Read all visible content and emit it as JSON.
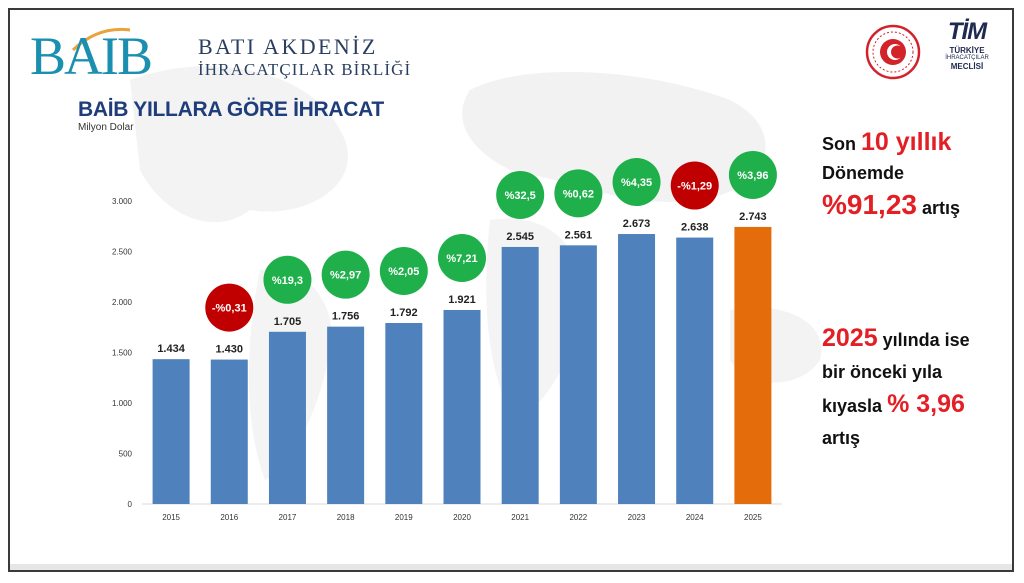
{
  "header": {
    "logo_mark": "BAIB",
    "logo_line1": "BATI AKDENİZ",
    "logo_line2": "İHRACATÇILAR BİRLİĞİ",
    "tim_mark": "TİM",
    "tim_line1": "TÜRKİYE",
    "tim_line2": "İHRACATÇILAR",
    "tim_line3": "MECLİSİ"
  },
  "title": "BAİB YILLARA GÖRE İHRACAT",
  "subtitle": "Milyon Dolar",
  "chart_data": {
    "type": "bar",
    "title": "BAİB YILLARA GÖRE İHRACAT",
    "ylabel": "Milyon Dolar",
    "ylim": [
      0,
      3000
    ],
    "yticks": [
      0,
      500,
      1000,
      1500,
      2000,
      2500,
      3000
    ],
    "ytick_labels": [
      "0",
      "500",
      "1.000",
      "1.500",
      "2.000",
      "2.500",
      "3.000"
    ],
    "categories": [
      "2015",
      "2016",
      "2017",
      "2018",
      "2019",
      "2020",
      "2021",
      "2022",
      "2023",
      "2024",
      "2025"
    ],
    "values": [
      1434,
      1430,
      1705,
      1756,
      1792,
      1921,
      2545,
      2561,
      2673,
      2638,
      2743
    ],
    "value_labels": [
      "1.434",
      "1.430",
      "1.705",
      "1.756",
      "1.792",
      "1.921",
      "2.545",
      "2.561",
      "2.673",
      "2.638",
      "2.743"
    ],
    "highlight_index": 10,
    "growth_labels": [
      null,
      "-%0,31",
      "%19,3",
      "%2,97",
      "%2,05",
      "%7,21",
      "%32,5",
      "%0,62",
      "%4,35",
      "-%1,29",
      "%3,96"
    ],
    "growth_values": [
      null,
      -0.31,
      19.3,
      2.97,
      2.05,
      7.21,
      32.5,
      0.62,
      4.35,
      -1.29,
      3.96
    ],
    "colors": {
      "bar": "#4f81bd",
      "highlight": "#e46c0a",
      "positive": "#1fb04b",
      "negative": "#c00000",
      "axis_text": "#333333"
    }
  },
  "side": {
    "p1_prefix": "Son",
    "p1_highlight": "10 yıllık",
    "p1_line2": "Dönemde",
    "p1_highlight2": "%91,23",
    "p1_suffix": "artış",
    "p2_highlight": "2025",
    "p2_text1": "yılında ise",
    "p2_line2": "bir önceki yıla",
    "p2_text3": "kıyasla",
    "p2_highlight2": "% 3,96",
    "p2_line4": "artış"
  }
}
